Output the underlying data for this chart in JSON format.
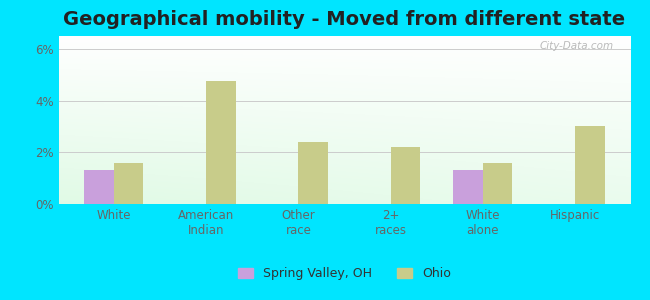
{
  "title": "Geographical mobility - Moved from different state",
  "categories": [
    "White",
    "American\nIndian",
    "Other\nrace",
    "2+\nraces",
    "White\nalone",
    "Hispanic"
  ],
  "spring_valley": [
    1.3,
    0.0,
    0.0,
    0.0,
    1.3,
    0.0
  ],
  "ohio": [
    1.6,
    4.75,
    2.4,
    2.2,
    1.6,
    3.0
  ],
  "spring_valley_color": "#c9a0dc",
  "ohio_color": "#c8cc8a",
  "ylim": [
    0,
    6.5
  ],
  "yticks": [
    0,
    2,
    4,
    6
  ],
  "ytick_labels": [
    "0%",
    "2%",
    "4%",
    "6%"
  ],
  "outer_background": "#00e5ff",
  "bar_width": 0.32,
  "title_fontsize": 14,
  "legend_spring_valley": "Spring Valley, OH",
  "legend_ohio": "Ohio",
  "watermark": "City-Data.com",
  "grid_color": "#cccccc",
  "tick_label_color": "#666666",
  "title_color": "#222222"
}
